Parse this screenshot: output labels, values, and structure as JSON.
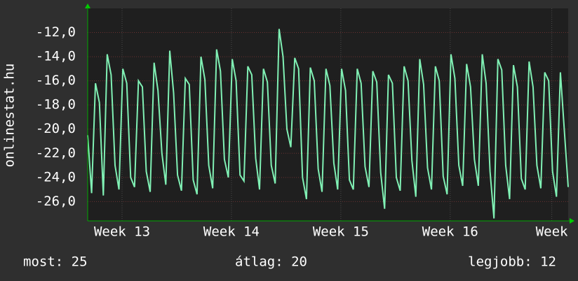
{
  "chart_data": {
    "type": "line",
    "y_label": "onlinestat.hu",
    "x": [
      0,
      0.25,
      0.5,
      0.75,
      1,
      1.25,
      1.5,
      1.75,
      2,
      2.25,
      2.5,
      2.75,
      3,
      3.25,
      3.5,
      3.75,
      4,
      4.25,
      4.5,
      4.75,
      5,
      5.25,
      5.5,
      5.75,
      6,
      6.25,
      6.5,
      6.75,
      7,
      7.25,
      7.5,
      7.75,
      8,
      8.25,
      8.5,
      8.75,
      9,
      9.25,
      9.5,
      9.75,
      10,
      10.25,
      10.5,
      10.75,
      11,
      11.25,
      11.5,
      11.75,
      12,
      12.25,
      12.5,
      12.75,
      13,
      13.25,
      13.5,
      13.75,
      14,
      14.25,
      14.5,
      14.75,
      15,
      15.25,
      15.5,
      15.75,
      16,
      16.25,
      16.5,
      16.75,
      17,
      17.25,
      17.5,
      17.75,
      18,
      18.25,
      18.5,
      18.75,
      19,
      19.25,
      19.5,
      19.75,
      20,
      20.25,
      20.5,
      20.75,
      21,
      21.25,
      21.5,
      21.75,
      22,
      22.25,
      22.5,
      22.75,
      23,
      23.25,
      23.5,
      23.75,
      24,
      24.25,
      24.5,
      24.75,
      25,
      25.25,
      25.5,
      25.75,
      26,
      26.25,
      26.5,
      26.75,
      27,
      27.25,
      27.5,
      27.75,
      28,
      28.25,
      28.5,
      28.75,
      29,
      29.25,
      29.5,
      29.75,
      30,
      30.25,
      30.5,
      30.75
    ],
    "series": [
      {
        "color": "#80f0b4",
        "values": [
          -20.5,
          -25.3,
          -16.2,
          -17.8,
          -25.5,
          -13.8,
          -15.5,
          -23.0,
          -25.0,
          -15.0,
          -16.2,
          -24.0,
          -24.8,
          -16.0,
          -16.5,
          -23.5,
          -25.2,
          -14.5,
          -16.8,
          -22.0,
          -24.6,
          -13.5,
          -17.0,
          -23.8,
          -25.1,
          -15.8,
          -16.3,
          -24.2,
          -25.4,
          -14.0,
          -15.9,
          -23.0,
          -24.9,
          -13.4,
          -15.2,
          -22.5,
          -24.0,
          -14.2,
          -16.0,
          -23.8,
          -24.3,
          -14.8,
          -15.5,
          -22.4,
          -25.0,
          -15.0,
          -16.1,
          -23.0,
          -24.5,
          -11.7,
          -14.0,
          -20.0,
          -21.5,
          -14.1,
          -15.0,
          -24.0,
          -25.8,
          -14.9,
          -16.0,
          -23.3,
          -25.2,
          -15.0,
          -16.4,
          -22.8,
          -25.0,
          -15.0,
          -16.8,
          -24.2,
          -25.0,
          -15.0,
          -16.2,
          -23.1,
          -24.8,
          -15.2,
          -16.1,
          -23.6,
          -26.6,
          -15.5,
          -16.2,
          -24.0,
          -25.1,
          -14.8,
          -16.0,
          -22.6,
          -25.6,
          -14.2,
          -16.3,
          -23.2,
          -25.0,
          -14.8,
          -16.0,
          -23.9,
          -25.4,
          -13.8,
          -15.8,
          -23.0,
          -24.7,
          -14.6,
          -16.5,
          -22.5,
          -24.7,
          -13.8,
          -16.2,
          -23.5,
          -27.4,
          -14.2,
          -15.1,
          -23.0,
          -25.8,
          -14.7,
          -16.5,
          -24.1,
          -25.0,
          -14.4,
          -16.5,
          -23.0,
          -24.9,
          -15.3,
          -16.0,
          -23.5,
          -25.6,
          -15.3,
          -20.0,
          -24.8
        ]
      }
    ],
    "xlim": [
      0,
      30.75
    ],
    "xticks": [
      {
        "value": 2.2,
        "label": "Week 13"
      },
      {
        "value": 9.2,
        "label": "Week 14"
      },
      {
        "value": 16.2,
        "label": "Week 15"
      },
      {
        "value": 23.2,
        "label": "Week 16"
      },
      {
        "value": 29.7,
        "label": "Week"
      }
    ],
    "ylim": [
      -27.6,
      -10
    ],
    "yticks": [
      {
        "value": -26,
        "label": "-26,0"
      },
      {
        "value": -24,
        "label": "-24,0"
      },
      {
        "value": -22,
        "label": "-22,0"
      },
      {
        "value": -20,
        "label": "-20,0"
      },
      {
        "value": -18,
        "label": "-18,0"
      },
      {
        "value": -16,
        "label": "-16,0"
      },
      {
        "value": -14,
        "label": "-14,0"
      },
      {
        "value": -12,
        "label": "-12,0"
      }
    ],
    "grid": true,
    "footer": [
      "most: 25",
      "átlag: 20",
      "legjobb: 12"
    ]
  }
}
